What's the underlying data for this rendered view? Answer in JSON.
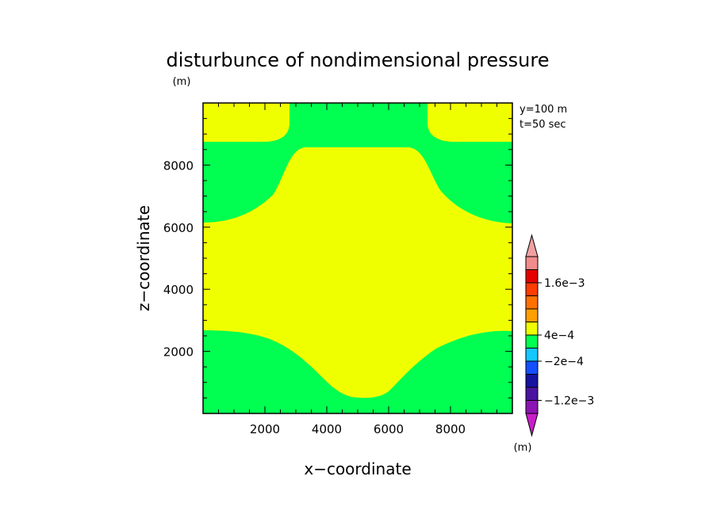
{
  "chart_data": {
    "type": "heatmap",
    "title": "disturbunce of nondimensional pressure",
    "unit_top": "(m)",
    "unit_bar": "(m)",
    "xlabel": "x−coordinate",
    "ylabel": "z−coordinate",
    "annotations": [
      "y=100 m",
      "t=50 sec"
    ],
    "xlim": [
      0,
      10000
    ],
    "ylim": [
      0,
      10000
    ],
    "xticks": [
      2000,
      4000,
      6000,
      8000
    ],
    "yticks": [
      2000,
      4000,
      6000,
      8000
    ],
    "xtick_labels": [
      "2000",
      "4000",
      "6000",
      "8000"
    ],
    "ytick_labels": [
      "2000",
      "4000",
      "6000",
      "8000"
    ],
    "colorbar": {
      "colors": [
        "#c81ec8",
        "#8c14b4",
        "#4b14a0",
        "#1414a0",
        "#1450ff",
        "#14c8ff",
        "#00ff50",
        "#f0ff00",
        "#ffa000",
        "#ff7000",
        "#ff3c00",
        "#e60000",
        "#f08c8c",
        "#f0a0a0"
      ],
      "labels": [
        "1.6e−3",
        "4e−4",
        "−2e−4",
        "−1.2e−3"
      ]
    },
    "regions": [
      {
        "level": "4e−4",
        "color": "#f0ff00"
      },
      {
        "level": "−2e−4",
        "color": "#00ff50"
      }
    ]
  }
}
